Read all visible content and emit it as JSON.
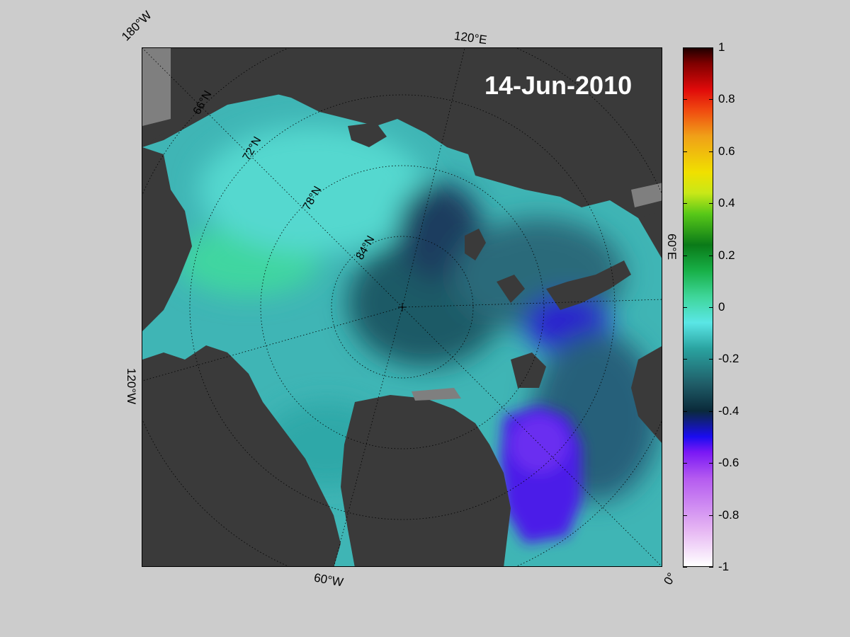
{
  "map": {
    "title": "14-Jun-2010",
    "longitude_labels": [
      "180°W",
      "120°E",
      "60°E",
      "0°",
      "60°W",
      "120°W"
    ],
    "latitude_labels": [
      "66°N",
      "72°N",
      "78°N",
      "84°N"
    ],
    "colors": {
      "land": "#3a3a3a",
      "no_data": "#7f7f7f",
      "background": "#cccccc",
      "graticule": "#000000"
    }
  },
  "colorbar": {
    "range": [
      -1,
      1
    ],
    "ticks": [
      "1",
      "0.8",
      "0.6",
      "0.4",
      "0.2",
      "0",
      "-0.2",
      "-0.4",
      "-0.6",
      "-0.8",
      "-1"
    ]
  }
}
